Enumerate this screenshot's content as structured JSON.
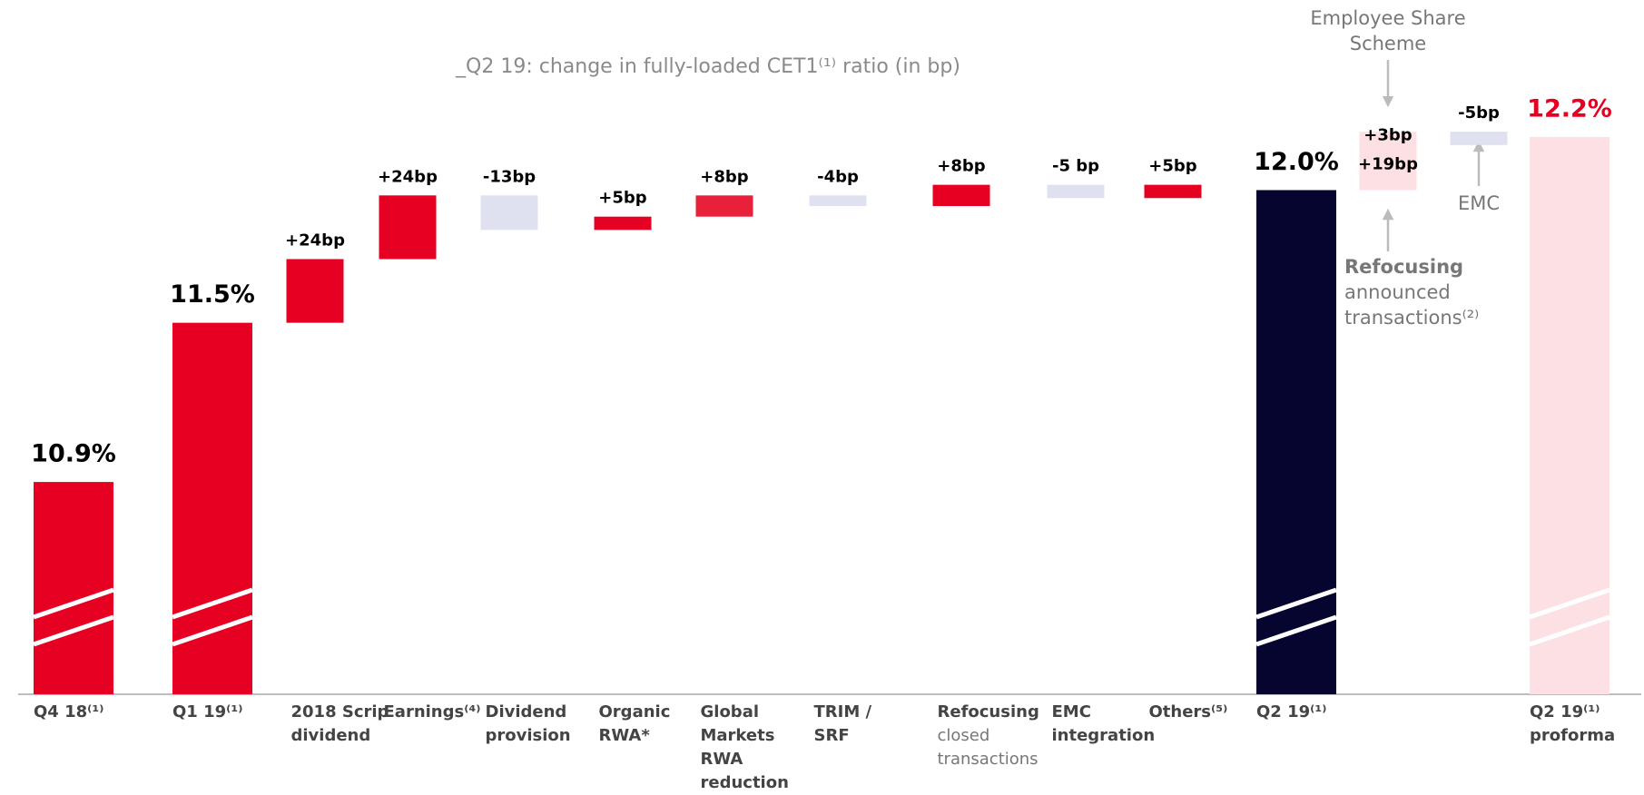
{
  "chart_data": {
    "type": "waterfall",
    "title": "_Q2 19: change in fully-loaded CET1⁽¹⁾ ratio (in bp)",
    "categories": [
      [
        "Q4 18⁽¹⁾"
      ],
      [
        "Q1 19⁽¹⁾"
      ],
      [
        "2018 Scrip",
        "dividend"
      ],
      [
        "Earnings⁽⁴⁾"
      ],
      [
        "Dividend",
        "provision"
      ],
      [
        "Organic",
        "RWA*"
      ],
      [
        "Global",
        "Markets",
        "RWA",
        "reduction"
      ],
      [
        "TRIM /",
        "SRF"
      ],
      [
        "Refocusing",
        "closed",
        "transactions"
      ],
      [
        "EMC",
        "integration"
      ],
      [
        "Others⁽⁵⁾"
      ],
      [
        "Q2 19⁽¹⁾"
      ],
      null,
      null,
      null,
      [
        "Q2 19⁽¹⁾",
        "proforma"
      ]
    ],
    "kinds": [
      "total",
      "total",
      "step",
      "step",
      "step",
      "step",
      "step",
      "step",
      "step",
      "step",
      "step",
      "total",
      "step",
      "step",
      "step",
      "total"
    ],
    "values": [
      10.9,
      11.5,
      24,
      24,
      -13,
      5,
      8,
      -4,
      8,
      -5,
      5,
      12.0,
      19,
      3,
      -5,
      12.2
    ],
    "value_labels": [
      "10.9%",
      "11.5%",
      "+24bp",
      "+24bp",
      "-13bp",
      "+5bp",
      "+8bp",
      "-4bp",
      "+8bp",
      "-5 bp",
      "+5bp",
      "12.0%",
      "+19bp",
      "+3bp",
      "-5bp",
      "12.2%"
    ],
    "colors": [
      "#e60021",
      "#e60021",
      "#e60021",
      "#e60021",
      "#dfe0f0",
      "#e60021",
      "#e8203a",
      "#dfe0f0",
      "#e60021",
      "#dfe0f0",
      "#e60021",
      "#050530",
      "#fde0e3",
      "#fde0e3",
      "#dfe0f0",
      "#fde0e3"
    ],
    "value_label_colors": [
      "#000000",
      "#000000",
      "#000000",
      "#000000",
      "#000000",
      "#000000",
      "#000000",
      "#000000",
      "#000000",
      "#000000",
      "#000000",
      "#000000",
      "#000000",
      "#000000",
      "#000000",
      "#e60021"
    ],
    "ylim": [
      10.1,
      12.2
    ],
    "annotations": [
      [
        "Employee Share",
        "Scheme"
      ],
      [
        "Refocusing",
        "announced",
        "transactions⁽²⁾"
      ],
      [
        "EMC"
      ]
    ]
  }
}
